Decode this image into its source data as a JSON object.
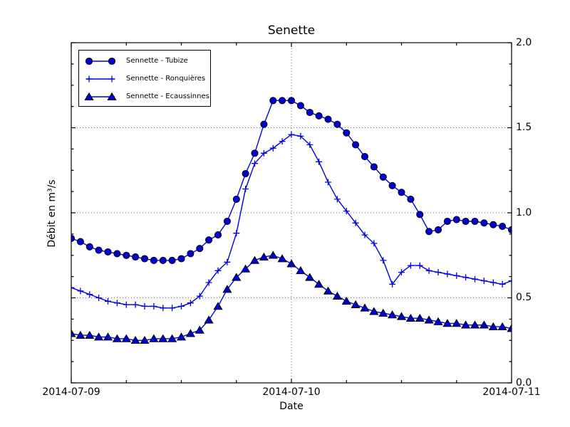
{
  "title": "Senette",
  "axes": {
    "xlabel": "Date",
    "ylabel": "Débit en m³/s"
  },
  "chart_data": {
    "type": "line",
    "title": "Senette",
    "xlabel": "Date",
    "ylabel": "Débit en m³/s",
    "x_start": "2014-07-09 00:00",
    "x_step_hours": 1,
    "xlim_hours": [
      0,
      48
    ],
    "ylim": [
      0.0,
      2.0
    ],
    "x_ticks": [
      {
        "hour": 0,
        "label": "2014-07-09"
      },
      {
        "hour": 24,
        "label": "2014-07-10"
      },
      {
        "hour": 48,
        "label": "2014-07-11"
      }
    ],
    "x_minor_tick_every_hours": 6,
    "y_ticks": [
      "0.0",
      "0.5",
      "1.0",
      "1.5",
      "2.0"
    ],
    "y_minor_tick_step": 0.125,
    "grid_y": [
      0.5,
      1.0,
      1.5
    ],
    "grid_x_hours": [
      24
    ],
    "grid_style": "dotted",
    "legend_position": "upper left",
    "colors": {
      "line": "#0000dd",
      "marker_fill": "#0000cc",
      "marker_edge": "#000000"
    },
    "series": [
      {
        "name": "Sennette - Tubize",
        "marker": "circle",
        "values": [
          0.85,
          0.83,
          0.8,
          0.78,
          0.77,
          0.76,
          0.75,
          0.74,
          0.73,
          0.72,
          0.72,
          0.72,
          0.73,
          0.76,
          0.79,
          0.84,
          0.87,
          0.95,
          1.08,
          1.23,
          1.35,
          1.52,
          1.66,
          1.66,
          1.66,
          1.63,
          1.59,
          1.57,
          1.55,
          1.52,
          1.47,
          1.4,
          1.33,
          1.27,
          1.21,
          1.16,
          1.12,
          1.08,
          0.99,
          0.89,
          0.9,
          0.95,
          0.96,
          0.95,
          0.95,
          0.94,
          0.93,
          0.92,
          0.9
        ]
      },
      {
        "name": "Sennette - Ronquières",
        "marker": "plus",
        "values": [
          0.56,
          0.54,
          0.52,
          0.5,
          0.48,
          0.47,
          0.46,
          0.46,
          0.45,
          0.45,
          0.44,
          0.44,
          0.45,
          0.47,
          0.51,
          0.59,
          0.66,
          0.71,
          0.88,
          1.14,
          1.29,
          1.35,
          1.38,
          1.42,
          1.46,
          1.45,
          1.4,
          1.3,
          1.18,
          1.08,
          1.01,
          0.94,
          0.87,
          0.82,
          0.72,
          0.58,
          0.65,
          0.69,
          0.69,
          0.66,
          0.65,
          0.64,
          0.63,
          0.62,
          0.61,
          0.6,
          0.59,
          0.58,
          0.6
        ]
      },
      {
        "name": "Sennette - Ecaussinnes",
        "marker": "triangle",
        "values": [
          0.29,
          0.28,
          0.28,
          0.27,
          0.27,
          0.26,
          0.26,
          0.25,
          0.25,
          0.26,
          0.26,
          0.26,
          0.27,
          0.29,
          0.31,
          0.37,
          0.45,
          0.55,
          0.62,
          0.67,
          0.72,
          0.74,
          0.75,
          0.73,
          0.7,
          0.66,
          0.62,
          0.58,
          0.54,
          0.51,
          0.48,
          0.46,
          0.44,
          0.42,
          0.41,
          0.4,
          0.39,
          0.38,
          0.38,
          0.37,
          0.36,
          0.35,
          0.35,
          0.34,
          0.34,
          0.34,
          0.33,
          0.33,
          0.32
        ]
      }
    ]
  }
}
